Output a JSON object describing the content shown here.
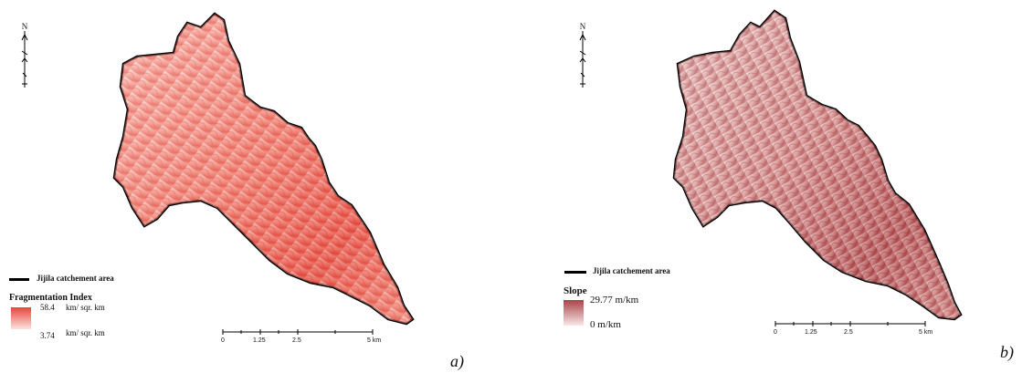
{
  "panels": [
    {
      "id": "a",
      "panel_label": "a)",
      "north_label": "N",
      "boundary_legend": "Jijila catchement area",
      "legend_title": "Fragmentation Index",
      "ramp_max_value": "58.4",
      "ramp_max_unit": "km/ sqr. km",
      "ramp_min_value": "3.74",
      "ramp_min_unit": "km/ sqr. km",
      "ramp_color_high": "#e8453c",
      "ramp_color_low": "#fbe3df",
      "scale_ticks": [
        "0",
        "1.25",
        "2.5",
        "5 km"
      ]
    },
    {
      "id": "b",
      "panel_label": "b)",
      "north_label": "N",
      "boundary_legend": "Jijila catchement area",
      "legend_title": "Slope",
      "ramp_max_value": "29.77 m/km",
      "ramp_min_value": "0 m/km",
      "ramp_color_high": "#a84448",
      "ramp_color_low": "#f8e7e6",
      "scale_ticks": [
        "0",
        "1.25",
        "2.5",
        "5 km"
      ]
    }
  ]
}
